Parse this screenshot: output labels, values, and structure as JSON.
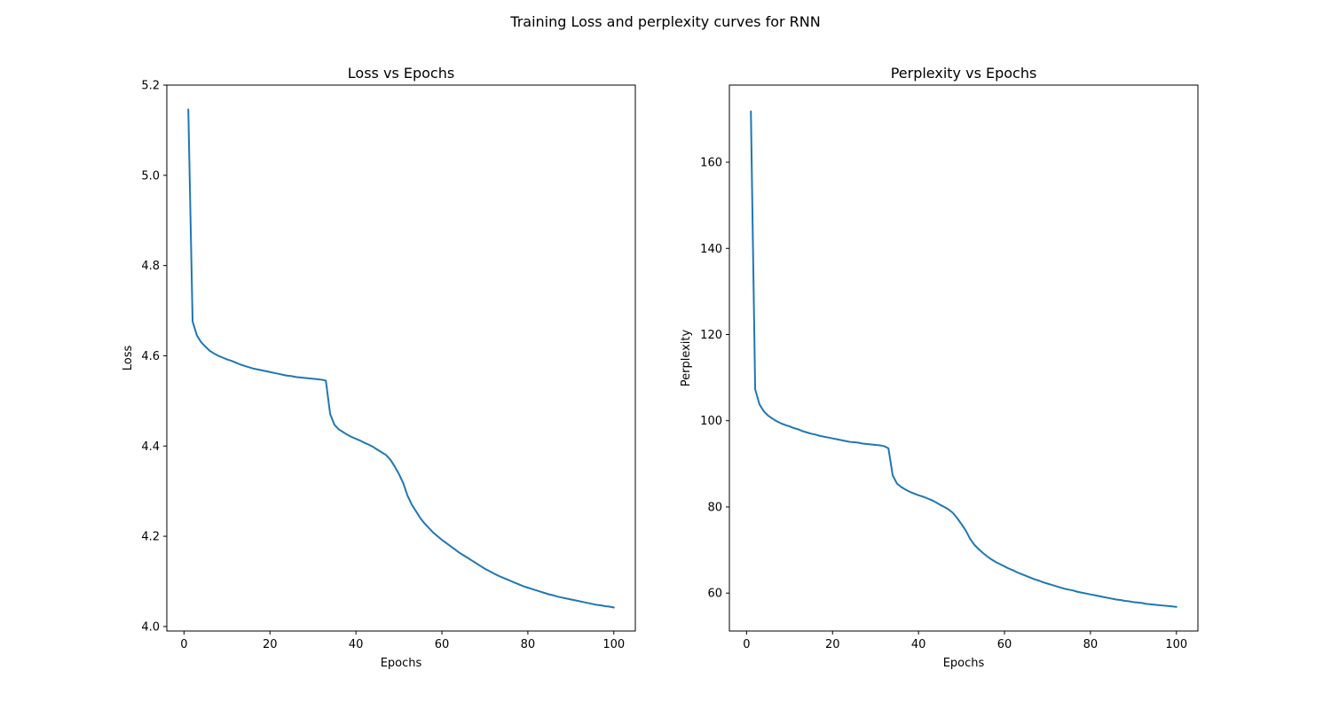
{
  "figure": {
    "title": "Training Loss and perplexity curves for RNN"
  },
  "colors": {
    "line": "#1f77b4"
  },
  "chart_data": [
    {
      "type": "line",
      "title": "Loss vs Epochs",
      "xlabel": "Epochs",
      "ylabel": "Loss",
      "xlim": [
        -4,
        105
      ],
      "ylim": [
        3.99,
        5.2
      ],
      "xticks": [
        0,
        20,
        40,
        60,
        80,
        100
      ],
      "yticks": [
        4.0,
        4.2,
        4.4,
        4.6,
        4.8,
        5.0,
        5.2
      ],
      "ytick_labels": [
        "4.0",
        "4.2",
        "4.4",
        "4.6",
        "4.8",
        "5.0",
        "5.2"
      ],
      "grid": false,
      "x": [
        1,
        2,
        3,
        4,
        5,
        6,
        7,
        8,
        9,
        10,
        11,
        12,
        13,
        14,
        15,
        16,
        17,
        18,
        19,
        20,
        21,
        22,
        23,
        24,
        25,
        26,
        27,
        28,
        29,
        30,
        31,
        32,
        33,
        34,
        35,
        36,
        37,
        38,
        39,
        40,
        41,
        42,
        43,
        44,
        45,
        46,
        47,
        48,
        49,
        50,
        51,
        52,
        53,
        54,
        55,
        56,
        57,
        58,
        59,
        60,
        61,
        62,
        63,
        64,
        65,
        66,
        67,
        68,
        69,
        70,
        71,
        72,
        73,
        74,
        75,
        76,
        77,
        78,
        79,
        80,
        81,
        82,
        83,
        84,
        85,
        86,
        87,
        88,
        89,
        90,
        91,
        92,
        93,
        94,
        95,
        96,
        97,
        98,
        99,
        100
      ],
      "y": [
        5.146,
        4.676,
        4.645,
        4.63,
        4.62,
        4.611,
        4.605,
        4.6,
        4.596,
        4.592,
        4.589,
        4.585,
        4.581,
        4.578,
        4.575,
        4.572,
        4.57,
        4.568,
        4.566,
        4.564,
        4.562,
        4.56,
        4.558,
        4.556,
        4.555,
        4.553,
        4.552,
        4.551,
        4.55,
        4.549,
        4.548,
        4.547,
        4.545,
        4.471,
        4.447,
        4.437,
        4.431,
        4.425,
        4.42,
        4.416,
        4.412,
        4.407,
        4.403,
        4.398,
        4.392,
        4.386,
        4.38,
        4.37,
        4.355,
        4.338,
        4.318,
        4.29,
        4.27,
        4.255,
        4.24,
        4.228,
        4.218,
        4.208,
        4.2,
        4.192,
        4.185,
        4.178,
        4.171,
        4.164,
        4.158,
        4.152,
        4.146,
        4.14,
        4.134,
        4.128,
        4.123,
        4.118,
        4.113,
        4.109,
        4.105,
        4.101,
        4.097,
        4.093,
        4.089,
        4.086,
        4.083,
        4.08,
        4.077,
        4.074,
        4.071,
        4.069,
        4.066,
        4.064,
        4.062,
        4.06,
        4.058,
        4.056,
        4.054,
        4.052,
        4.05,
        4.048,
        4.047,
        4.045,
        4.044,
        4.042
      ]
    },
    {
      "type": "line",
      "title": "Perplexity vs Epochs",
      "xlabel": "Epochs",
      "ylabel": "Perplexity",
      "xlim": [
        -4,
        105
      ],
      "ylim": [
        51.2,
        177.9
      ],
      "xticks": [
        0,
        20,
        40,
        60,
        80,
        100
      ],
      "yticks": [
        60,
        80,
        100,
        120,
        140,
        160
      ],
      "ytick_labels": [
        "60",
        "80",
        "100",
        "120",
        "140",
        "160"
      ],
      "grid": false,
      "x": [
        1,
        2,
        3,
        4,
        5,
        6,
        7,
        8,
        9,
        10,
        11,
        12,
        13,
        14,
        15,
        16,
        17,
        18,
        19,
        20,
        21,
        22,
        23,
        24,
        25,
        26,
        27,
        28,
        29,
        30,
        31,
        32,
        33,
        34,
        35,
        36,
        37,
        38,
        39,
        40,
        41,
        42,
        43,
        44,
        45,
        46,
        47,
        48,
        49,
        50,
        51,
        52,
        53,
        54,
        55,
        56,
        57,
        58,
        59,
        60,
        61,
        62,
        63,
        64,
        65,
        66,
        67,
        68,
        69,
        70,
        71,
        72,
        73,
        74,
        75,
        76,
        77,
        78,
        79,
        80,
        81,
        82,
        83,
        84,
        85,
        86,
        87,
        88,
        89,
        90,
        91,
        92,
        93,
        94,
        95,
        96,
        97,
        98,
        99,
        100
      ],
      "y": [
        171.8,
        107.3,
        103.8,
        102.2,
        101.2,
        100.5,
        99.9,
        99.4,
        99.0,
        98.7,
        98.3,
        98.0,
        97.6,
        97.3,
        97.0,
        96.8,
        96.5,
        96.3,
        96.1,
        95.9,
        95.7,
        95.5,
        95.3,
        95.1,
        95.0,
        94.9,
        94.7,
        94.6,
        94.5,
        94.4,
        94.3,
        94.1,
        93.6,
        87.3,
        85.4,
        84.6,
        84.0,
        83.5,
        83.1,
        82.7,
        82.4,
        82.0,
        81.6,
        81.1,
        80.5,
        80.0,
        79.4,
        78.6,
        77.4,
        76.0,
        74.5,
        72.6,
        71.2,
        70.2,
        69.3,
        68.5,
        67.8,
        67.2,
        66.7,
        66.2,
        65.7,
        65.3,
        64.8,
        64.4,
        64.0,
        63.6,
        63.2,
        62.9,
        62.5,
        62.2,
        61.9,
        61.6,
        61.3,
        61.0,
        60.8,
        60.6,
        60.3,
        60.1,
        59.9,
        59.7,
        59.5,
        59.3,
        59.1,
        58.9,
        58.7,
        58.5,
        58.4,
        58.2,
        58.1,
        57.9,
        57.8,
        57.7,
        57.5,
        57.4,
        57.3,
        57.2,
        57.1,
        57.0,
        56.9,
        56.8
      ]
    }
  ]
}
